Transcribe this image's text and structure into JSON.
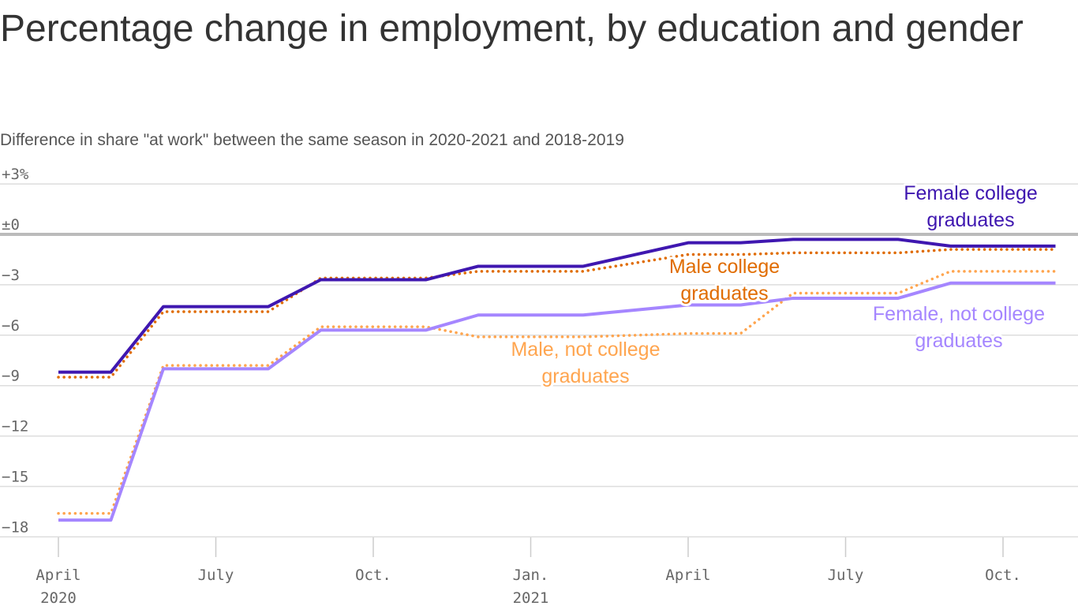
{
  "title": "Percentage change in employment, by education and gender",
  "subtitle": "Difference in share \"at work\" between the same season in 2020-2021 and 2018-2019",
  "chart_data": {
    "type": "line",
    "title": "Percentage change in employment, by education and gender",
    "subtitle": "Difference in share \"at work\" between the same season in 2020-2021 and 2018-2019",
    "ylim": [
      -18,
      3
    ],
    "yticks": [
      {
        "v": 3,
        "label": "+3%"
      },
      {
        "v": 0,
        "label": "±0"
      },
      {
        "v": -3,
        "label": "−3"
      },
      {
        "v": -6,
        "label": "−6"
      },
      {
        "v": -9,
        "label": "−9"
      },
      {
        "v": -12,
        "label": "−12"
      },
      {
        "v": -15,
        "label": "−15"
      },
      {
        "v": -18,
        "label": "−18"
      }
    ],
    "xticks": [
      {
        "m": 0,
        "label": "April",
        "sub": "2020"
      },
      {
        "m": 3,
        "label": "July",
        "sub": ""
      },
      {
        "m": 6,
        "label": "Oct.",
        "sub": ""
      },
      {
        "m": 9,
        "label": "Jan.",
        "sub": "2021"
      },
      {
        "m": 12,
        "label": "April",
        "sub": ""
      },
      {
        "m": 15,
        "label": "July",
        "sub": ""
      },
      {
        "m": 18,
        "label": "Oct.",
        "sub": ""
      }
    ],
    "x": [
      "2020-04",
      "2020-05",
      "2020-06",
      "2020-07",
      "2020-08",
      "2020-09",
      "2020-10",
      "2020-11",
      "2020-12",
      "2021-01",
      "2021-02",
      "2021-03",
      "2021-04",
      "2021-05",
      "2021-06",
      "2021-07",
      "2021-08",
      "2021-09",
      "2021-10",
      "2021-11"
    ],
    "grid": true,
    "series": [
      {
        "name": "Male, not college graduates",
        "color": "#ffa54f",
        "dash": true,
        "values": [
          -16.6,
          -16.6,
          -7.8,
          -7.8,
          -7.8,
          -5.5,
          -5.5,
          -5.5,
          -6.1,
          -6.1,
          -6.1,
          -6.0,
          -5.9,
          -5.9,
          -3.5,
          -3.5,
          -3.5,
          -2.2,
          -2.2,
          -2.2
        ]
      },
      {
        "name": "Female, not college graduates",
        "color": "#a586ff",
        "dash": false,
        "values": [
          -17.0,
          -17.0,
          -8.0,
          -8.0,
          -8.0,
          -5.7,
          -5.7,
          -5.7,
          -4.8,
          -4.8,
          -4.8,
          -4.5,
          -4.2,
          -4.2,
          -3.8,
          -3.8,
          -3.8,
          -2.9,
          -2.9,
          -2.9
        ]
      },
      {
        "name": "Male college graduates",
        "color": "#e06c00",
        "dash": true,
        "values": [
          -8.5,
          -8.5,
          -4.6,
          -4.6,
          -4.6,
          -2.6,
          -2.6,
          -2.6,
          -2.2,
          -2.2,
          -2.2,
          -1.7,
          -1.2,
          -1.2,
          -1.1,
          -1.1,
          -1.1,
          -0.9,
          -0.9,
          -0.9
        ]
      },
      {
        "name": "Female college graduates",
        "color": "#3f17b0",
        "dash": false,
        "values": [
          -8.2,
          -8.2,
          -4.3,
          -4.3,
          -4.3,
          -2.7,
          -2.7,
          -2.7,
          -1.9,
          -1.9,
          -1.9,
          -1.2,
          -0.5,
          -0.5,
          -0.3,
          -0.3,
          -0.3,
          -0.7,
          -0.7,
          -0.7
        ]
      }
    ],
    "labels": [
      {
        "lines": [
          "Female college",
          "graduates"
        ],
        "series": 3
      },
      {
        "lines": [
          "Male college",
          "graduates"
        ],
        "series": 2
      },
      {
        "lines": [
          "Female, not college",
          "graduates"
        ],
        "series": 1
      },
      {
        "lines": [
          "Male, not college",
          "graduates"
        ],
        "series": 0
      }
    ]
  }
}
